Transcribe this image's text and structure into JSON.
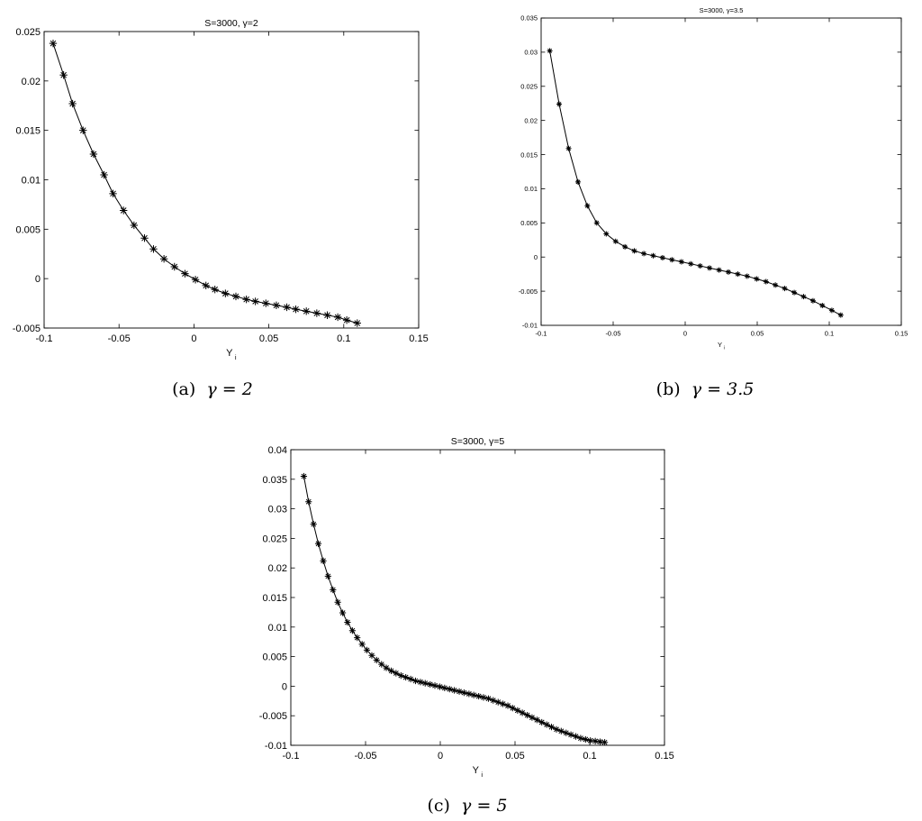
{
  "chart_data": [
    {
      "type": "line",
      "title": "S=3000,   γ=2",
      "xlabel": "Y",
      "xlabel_sub": "i",
      "ylabel": "",
      "caption_prefix": "(a)",
      "caption_gamma": "γ = 2",
      "xlim": [
        -0.1,
        0.15
      ],
      "ylim": [
        -0.005,
        0.025
      ],
      "xticks": [
        -0.1,
        -0.05,
        0,
        0.05,
        0.1,
        0.15
      ],
      "yticks": [
        -0.005,
        0,
        0.005,
        0.01,
        0.015,
        0.02,
        0.025
      ],
      "xtick_labels": [
        "-0.1",
        "-0.05",
        "0",
        "0.05",
        "0.1",
        "0.15"
      ],
      "ytick_labels": [
        "-0.005",
        "0",
        "0.005",
        "0.01",
        "0.015",
        "0.02",
        "0.025"
      ],
      "marker": "asterisk",
      "grid": false,
      "series": [
        {
          "x": [
            -0.094,
            -0.087,
            -0.081,
            -0.074,
            -0.067,
            -0.06,
            -0.054,
            -0.047,
            -0.04,
            -0.033,
            -0.027,
            -0.02,
            -0.013,
            -0.006,
            0.001,
            0.008,
            0.014,
            0.021,
            0.028,
            0.035,
            0.041,
            0.048,
            0.055,
            0.062,
            0.068,
            0.075,
            0.082,
            0.089,
            0.096,
            0.102,
            0.109
          ],
          "y": [
            0.0238,
            0.0206,
            0.0177,
            0.015,
            0.0126,
            0.0105,
            0.0086,
            0.0069,
            0.0054,
            0.0041,
            0.003,
            0.002,
            0.0012,
            0.0005,
            -0.0001,
            -0.0007,
            -0.0011,
            -0.0015,
            -0.0018,
            -0.0021,
            -0.0023,
            -0.0025,
            -0.0027,
            -0.0029,
            -0.0031,
            -0.0033,
            -0.0035,
            -0.0037,
            -0.0039,
            -0.0042,
            -0.0045
          ]
        }
      ]
    },
    {
      "type": "line",
      "title": "S=3000,   γ=3.5",
      "xlabel": "Y",
      "xlabel_sub": "i",
      "ylabel": "",
      "caption_prefix": "(b)",
      "caption_gamma": "γ = 3.5",
      "xlim": [
        -0.1,
        0.15
      ],
      "ylim": [
        -0.01,
        0.035
      ],
      "xticks": [
        -0.1,
        -0.05,
        0,
        0.05,
        0.1,
        0.15
      ],
      "yticks": [
        -0.01,
        -0.005,
        0,
        0.005,
        0.01,
        0.015,
        0.02,
        0.025,
        0.03,
        0.035
      ],
      "xtick_labels": [
        "-0.1",
        "-0.05",
        "0",
        "0.05",
        "0.1",
        "0.15"
      ],
      "ytick_labels": [
        "-0.01",
        "-0.005",
        "0",
        "0.005",
        "0.01",
        "0.015",
        "0.02",
        "0.025",
        "0.03",
        "0.035"
      ],
      "marker": "asterisk",
      "grid": false,
      "series": [
        {
          "x": [
            -0.094,
            -0.0875,
            -0.0809,
            -0.0744,
            -0.0679,
            -0.0614,
            -0.0548,
            -0.0483,
            -0.0418,
            -0.0353,
            -0.0287,
            -0.0222,
            -0.0157,
            -0.0092,
            -0.0026,
            0.0039,
            0.0104,
            0.0169,
            0.0235,
            0.03,
            0.0365,
            0.043,
            0.0496,
            0.0561,
            0.0626,
            0.0691,
            0.0757,
            0.0822,
            0.0887,
            0.0952,
            0.1018,
            0.108
          ],
          "y": [
            0.0302,
            0.0224,
            0.0159,
            0.011,
            0.0075,
            0.005,
            0.0034,
            0.0023,
            0.0015,
            0.0009,
            0.0005,
            0.0002,
            -0.0001,
            -0.0004,
            -0.0007,
            -0.001,
            -0.0013,
            -0.0016,
            -0.0019,
            -0.0022,
            -0.0025,
            -0.0028,
            -0.0032,
            -0.0036,
            -0.0041,
            -0.0046,
            -0.0052,
            -0.0058,
            -0.0064,
            -0.0071,
            -0.0078,
            -0.0085
          ]
        }
      ]
    },
    {
      "type": "line",
      "title": "S=3000,   γ=5",
      "xlabel": "Y",
      "xlabel_sub": "i",
      "ylabel": "",
      "caption_prefix": "(c)",
      "caption_gamma": "γ = 5",
      "xlim": [
        -0.1,
        0.15
      ],
      "ylim": [
        -0.01,
        0.04
      ],
      "xticks": [
        -0.1,
        -0.05,
        0,
        0.05,
        0.1,
        0.15
      ],
      "yticks": [
        -0.01,
        -0.005,
        0,
        0.005,
        0.01,
        0.015,
        0.02,
        0.025,
        0.03,
        0.035,
        0.04
      ],
      "xtick_labels": [
        "-0.1",
        "-0.05",
        "0",
        "0.05",
        "0.1",
        "0.15"
      ],
      "ytick_labels": [
        "-0.01",
        "-0.005",
        "0",
        "0.005",
        "0.01",
        "0.015",
        "0.02",
        "0.025",
        "0.03",
        "0.035",
        "0.04"
      ],
      "marker": "asterisk",
      "grid": false,
      "series": [
        {
          "x": [
            -0.0913,
            -0.0881,
            -0.0848,
            -0.0816,
            -0.0783,
            -0.0751,
            -0.0718,
            -0.0686,
            -0.0653,
            -0.0621,
            -0.0588,
            -0.0556,
            -0.0523,
            -0.0491,
            -0.0458,
            -0.0426,
            -0.0393,
            -0.0361,
            -0.0328,
            -0.0296,
            -0.0263,
            -0.0231,
            -0.0198,
            -0.0166,
            -0.0133,
            -0.0101,
            -0.0068,
            -0.0036,
            -0.0003,
            0.0029,
            0.0062,
            0.0094,
            0.0127,
            0.0159,
            0.0192,
            0.0224,
            0.0257,
            0.0289,
            0.0322,
            0.0354,
            0.0387,
            0.0419,
            0.0452,
            0.0484,
            0.0517,
            0.0549,
            0.0582,
            0.0614,
            0.0647,
            0.0679,
            0.0712,
            0.0744,
            0.0777,
            0.0809,
            0.0842,
            0.0874,
            0.0907,
            0.0939,
            0.0972,
            0.1004,
            0.1037,
            0.1069,
            0.11
          ],
          "y": [
            0.0355,
            0.0312,
            0.0274,
            0.0241,
            0.0212,
            0.0186,
            0.0163,
            0.0142,
            0.0124,
            0.0108,
            0.0094,
            0.0082,
            0.0071,
            0.0061,
            0.0052,
            0.0044,
            0.0037,
            0.0031,
            0.0026,
            0.0022,
            0.0018,
            0.0015,
            0.0012,
            0.0009,
            0.0007,
            0.0005,
            0.0003,
            0.0001,
            -0.0001,
            -0.0003,
            -0.0005,
            -0.0007,
            -0.0009,
            -0.0011,
            -0.0013,
            -0.0015,
            -0.0017,
            -0.0019,
            -0.0021,
            -0.0024,
            -0.0027,
            -0.003,
            -0.0033,
            -0.0037,
            -0.0041,
            -0.0045,
            -0.0049,
            -0.0053,
            -0.0057,
            -0.0061,
            -0.0065,
            -0.0069,
            -0.0073,
            -0.0076,
            -0.0079,
            -0.0082,
            -0.0085,
            -0.0088,
            -0.009,
            -0.0092,
            -0.0093,
            -0.0094,
            -0.0095
          ]
        }
      ]
    }
  ]
}
